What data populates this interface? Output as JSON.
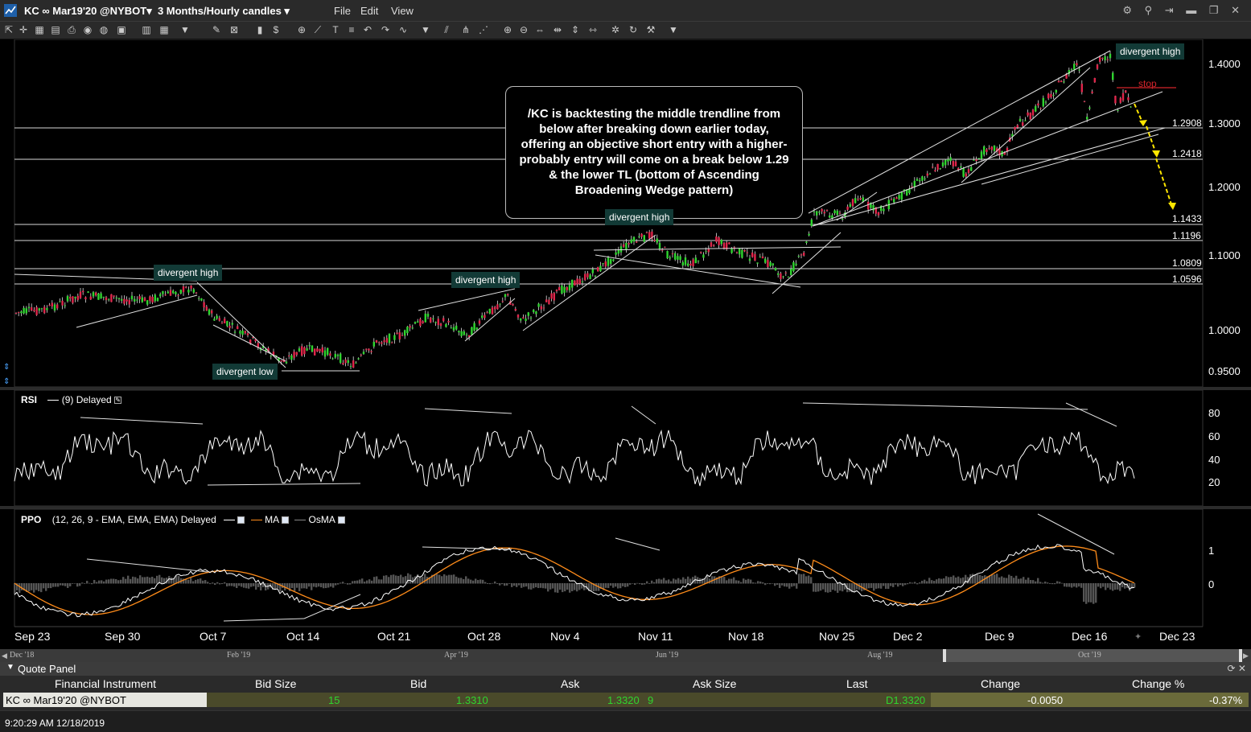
{
  "window": {
    "symbol_title": "KC ∞ Mar19'20 @NYBOT",
    "timeframe": "3 Months/Hourly candles",
    "menu": [
      "File",
      "Edit",
      "View"
    ]
  },
  "annotation": {
    "text": "/KC is backtesting the middle trendline from below after breaking down earlier today, offering an objective short entry with a higher-probably entry will come on a break below 1.29 & the lower TL (bottom of Ascending Broadening Wedge pattern)"
  },
  "tags": {
    "divergent_high_1": "divergent high",
    "divergent_high_2": "divergent high",
    "divergent_high_3": "divergent high",
    "divergent_high_4": "divergent high",
    "divergent_low": "divergent low",
    "stop": "stop"
  },
  "price_levels": [
    "1.2908",
    "1.2418",
    "1.1433",
    "1.1196",
    "1.0809",
    "1.0596"
  ],
  "price_axis": [
    "1.4000",
    "1.3000",
    "1.2000",
    "1.1000",
    "1.0000",
    "0.9500"
  ],
  "rsi": {
    "label": "RSI",
    "params": "(9) Delayed",
    "axis": [
      "80",
      "60",
      "40",
      "20"
    ]
  },
  "ppo": {
    "label": "PPO",
    "params": "(12, 26, 9 - EMA, EMA, EMA) Delayed",
    "ma_label": "MA",
    "osma_label": "OsMA",
    "axis": [
      "1",
      "0"
    ]
  },
  "date_axis": [
    "Sep 23",
    "Sep 30",
    "Oct 7",
    "Oct 14",
    "Oct 21",
    "Oct 28",
    "Nov 4",
    "Nov 11",
    "Nov 18",
    "Nov 25",
    "Dec 2",
    "Dec 9",
    "Dec 16",
    "Dec 23"
  ],
  "navigator": [
    "Dec '18",
    "Feb '19",
    "Apr '19",
    "Jun '19",
    "Aug '19",
    "Oct '19"
  ],
  "quote_panel": {
    "title": "Quote Panel",
    "columns": [
      "Financial Instrument",
      "Bid Size",
      "Bid",
      "Ask",
      "Ask Size",
      "Last",
      "Change",
      "Change %"
    ],
    "row": {
      "instrument": "KC ∞ Mar19'20 @NYBOT",
      "bid_size": "15",
      "bid": "1.3310",
      "ask": "1.3320",
      "ask_size": "9",
      "last": "D1.3320",
      "change": "-0.0050",
      "change_pct": "-0.37%"
    }
  },
  "status": {
    "time": "9:20:29 AM 12/18/2019"
  },
  "colors": {
    "up": "#2fd52f",
    "down": "#e0254a",
    "tag_bg": "#123a36",
    "stop": "#d2232a",
    "projection": "#ffe600",
    "ppo_ma": "#ff8c1a"
  }
}
